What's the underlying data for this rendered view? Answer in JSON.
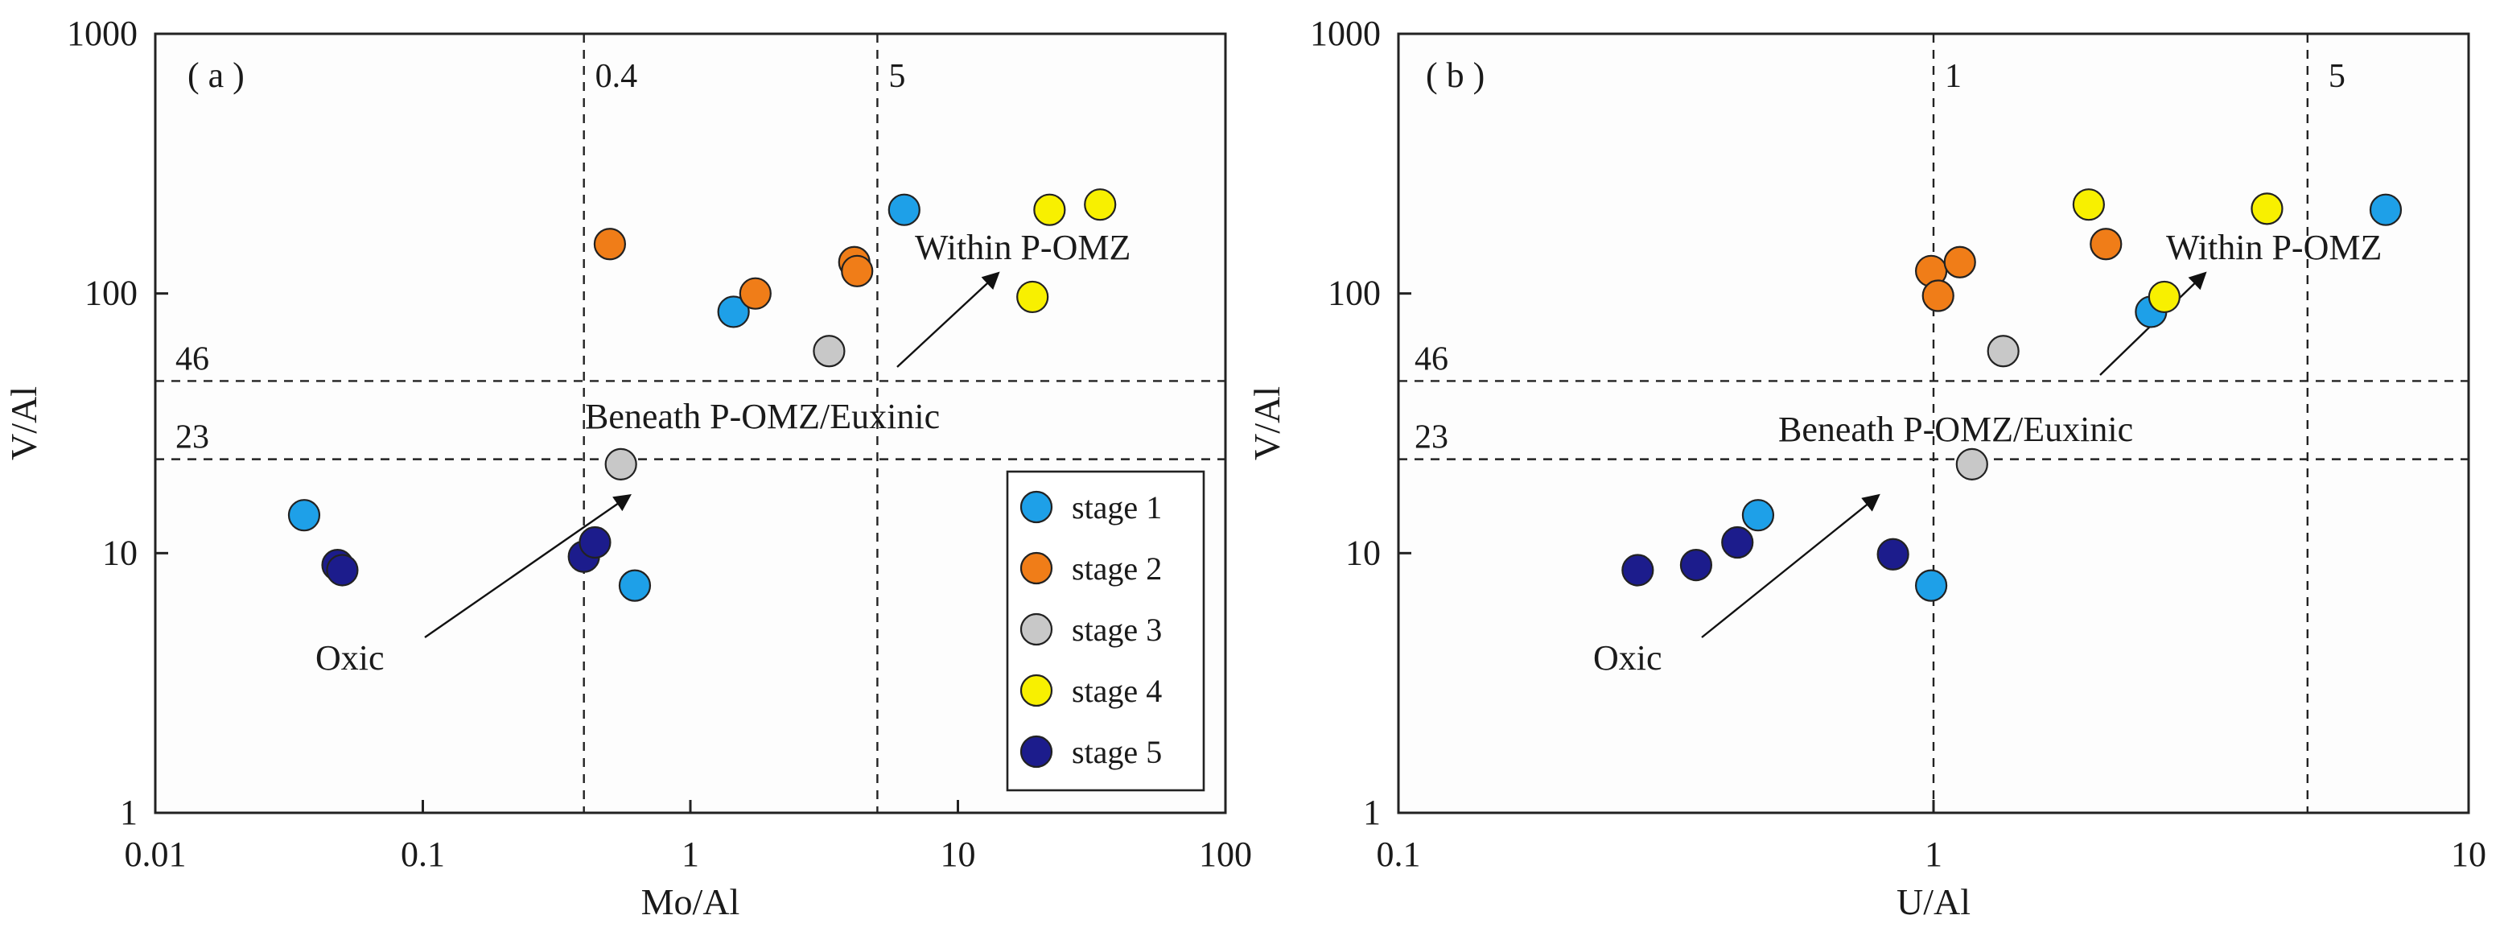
{
  "colors": {
    "stage 1": "#1EA0E8",
    "stage 2": "#F07D18",
    "stage 3": "#C8C8C8",
    "stage 4": "#F8F000",
    "stage 5": "#1C1C8C"
  },
  "legend": {
    "entries": [
      {
        "label": "stage 1",
        "color": "#1EA0E8"
      },
      {
        "label": "stage 2",
        "color": "#F07D18"
      },
      {
        "label": "stage 3",
        "color": "#C8C8C8"
      },
      {
        "label": "stage 4",
        "color": "#F8F000"
      },
      {
        "label": "stage 5",
        "color": "#1C1C8C"
      }
    ]
  },
  "chart_data": [
    {
      "type": "scatter",
      "panel_label": "( a )",
      "xlabel": "Mo/Al",
      "ylabel": "V/Al",
      "xscale": "log",
      "yscale": "log",
      "xlim": [
        0.01,
        100
      ],
      "ylim": [
        1,
        1000
      ],
      "x_ticks": [
        "0.01",
        "0.1",
        "1",
        "10",
        "100"
      ],
      "y_ticks": [
        "1",
        "10",
        "100",
        "1000"
      ],
      "vlines": [
        {
          "value": 0.4,
          "label": "0.4"
        },
        {
          "value": 5,
          "label": "5"
        }
      ],
      "hlines": [
        {
          "value": 46,
          "label": "46"
        },
        {
          "value": 23,
          "label": "23"
        }
      ],
      "annotations": {
        "oxic": "Oxic",
        "beneath": "Beneath P-OMZ/Euxinic",
        "within": "Within P-OMZ"
      },
      "series": [
        {
          "name": "stage 1",
          "x": [
            0.036,
            1.45,
            6.3,
            0.62
          ],
          "y": [
            14,
            85,
            210,
            7.5
          ]
        },
        {
          "name": "stage 2",
          "x": [
            0.5,
            1.75,
            4.1,
            4.2
          ],
          "y": [
            155,
            100,
            132,
            122
          ]
        },
        {
          "name": "stage 3",
          "x": [
            3.3,
            0.55
          ],
          "y": [
            60,
            22
          ]
        },
        {
          "name": "stage 4",
          "x": [
            22,
            34,
            19
          ],
          "y": [
            210,
            220,
            97
          ]
        },
        {
          "name": "stage 5",
          "x": [
            0.048,
            0.05,
            0.4,
            0.44
          ],
          "y": [
            9,
            8.6,
            9.7,
            11
          ]
        }
      ]
    },
    {
      "type": "scatter",
      "panel_label": "( b )",
      "xlabel": "U/Al",
      "ylabel": "V/Al",
      "xscale": "log",
      "yscale": "log",
      "xlim": [
        0.1,
        10
      ],
      "ylim": [
        1,
        1000
      ],
      "x_ticks": [
        "0.1",
        "1",
        "10"
      ],
      "y_ticks": [
        "1",
        "10",
        "100",
        "1000"
      ],
      "vlines": [
        {
          "value": 1,
          "label": "1"
        },
        {
          "value": 5,
          "label": "5"
        }
      ],
      "hlines": [
        {
          "value": 46,
          "label": "46"
        },
        {
          "value": 23,
          "label": "23"
        }
      ],
      "annotations": {
        "oxic": "Oxic",
        "beneath": "Beneath P-OMZ/Euxinic",
        "within": "Within P-OMZ"
      },
      "series": [
        {
          "name": "stage 1",
          "x": [
            0.47,
            0.99,
            2.55,
            7.0
          ],
          "y": [
            14,
            7.5,
            85,
            210
          ]
        },
        {
          "name": "stage 2",
          "x": [
            0.99,
            1.02,
            1.12,
            2.1
          ],
          "y": [
            122,
            98,
            132,
            155
          ]
        },
        {
          "name": "stage 3",
          "x": [
            1.35,
            1.18
          ],
          "y": [
            60,
            22
          ]
        },
        {
          "name": "stage 4",
          "x": [
            1.95,
            2.7,
            4.2
          ],
          "y": [
            220,
            97,
            212
          ]
        },
        {
          "name": "stage 5",
          "x": [
            0.28,
            0.36,
            0.43,
            0.84
          ],
          "y": [
            8.6,
            9,
            11,
            9.9
          ]
        }
      ]
    }
  ]
}
